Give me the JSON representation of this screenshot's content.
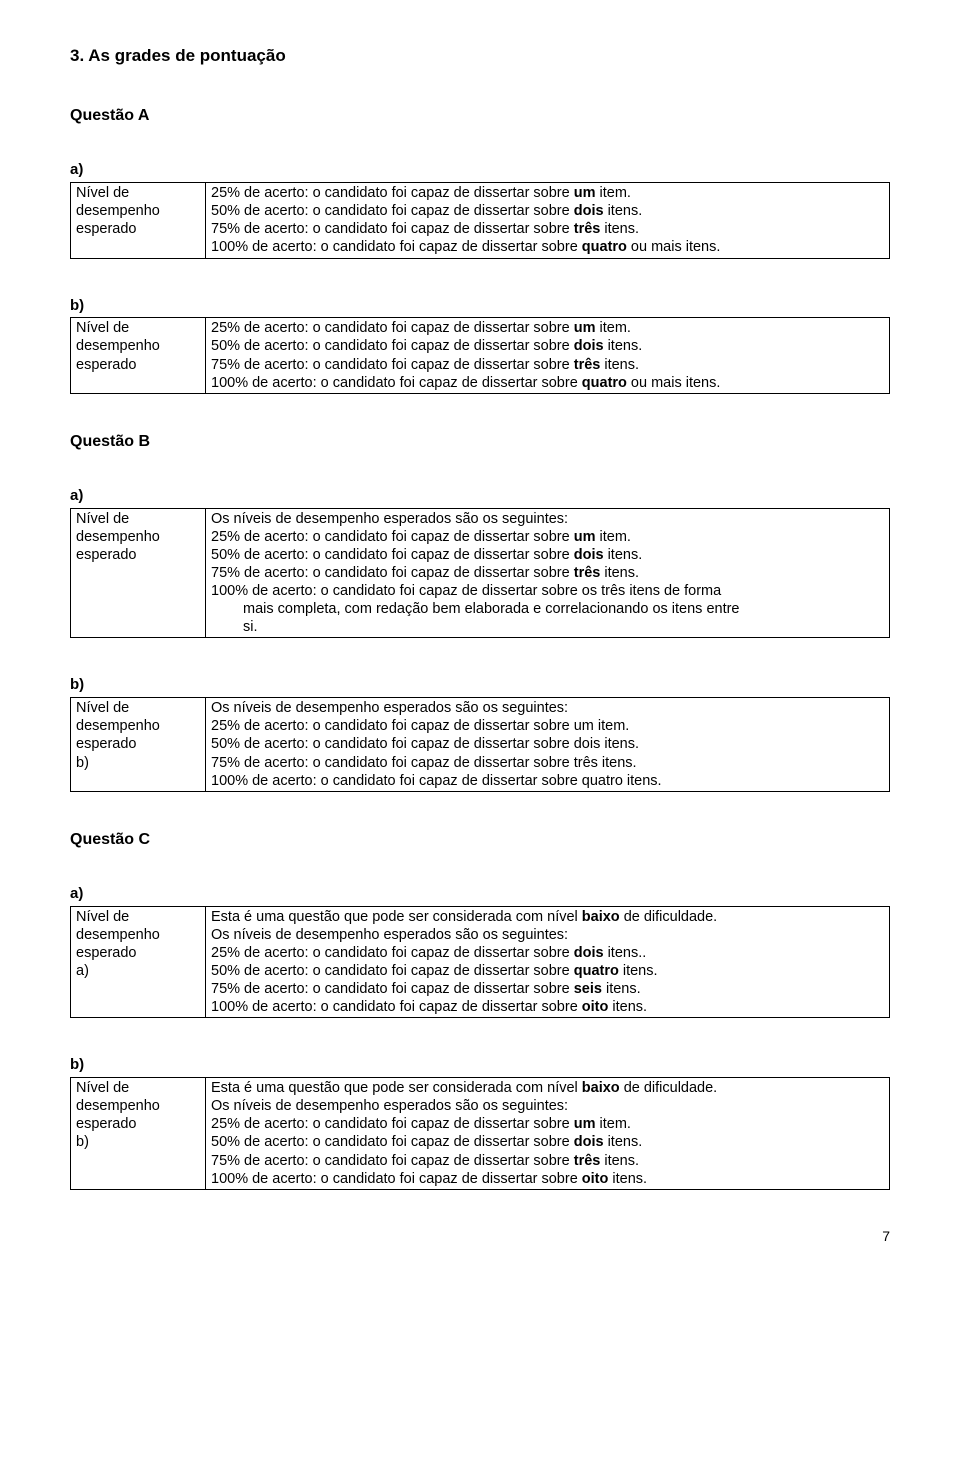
{
  "section_title": "3. As grades de pontuação",
  "page_number": "7",
  "leftcol_label": "Nível de desempenho esperado",
  "questions": [
    {
      "heading": "Questão A",
      "parts": [
        {
          "label": "a)",
          "extra_left": null,
          "lines": [
            [
              {
                "t": "25% de acerto: o candidato foi capaz de dissertar sobre "
              },
              {
                "t": "um",
                "b": true
              },
              {
                "t": " item."
              }
            ],
            [
              {
                "t": "50% de acerto: o candidato foi capaz de dissertar sobre "
              },
              {
                "t": "dois",
                "b": true
              },
              {
                "t": " itens."
              }
            ],
            [
              {
                "t": "75% de acerto: o candidato foi capaz de dissertar sobre "
              },
              {
                "t": "três",
                "b": true
              },
              {
                "t": " itens."
              }
            ],
            [
              {
                "t": "100% de acerto: o candidato foi capaz de dissertar sobre "
              },
              {
                "t": "quatro",
                "b": true
              },
              {
                "t": " ou mais itens."
              }
            ]
          ]
        },
        {
          "label": "b)",
          "extra_left": null,
          "lines": [
            [
              {
                "t": "25% de acerto: o candidato foi capaz de dissertar sobre "
              },
              {
                "t": "um",
                "b": true
              },
              {
                "t": " item."
              }
            ],
            [
              {
                "t": "50% de acerto: o candidato foi capaz de dissertar sobre "
              },
              {
                "t": "dois",
                "b": true
              },
              {
                "t": " itens."
              }
            ],
            [
              {
                "t": "75% de acerto: o candidato foi capaz de dissertar sobre "
              },
              {
                "t": "três",
                "b": true
              },
              {
                "t": " itens."
              }
            ],
            [
              {
                "t": "100% de acerto: o candidato foi capaz de dissertar sobre "
              },
              {
                "t": "quatro",
                "b": true
              },
              {
                "t": " ou mais itens."
              }
            ]
          ]
        }
      ]
    },
    {
      "heading": "Questão B",
      "parts": [
        {
          "label": "a)",
          "extra_left": null,
          "lines": [
            [
              {
                "t": "Os níveis de desempenho esperados são os seguintes:"
              }
            ],
            [
              {
                "t": "25% de acerto: o candidato foi capaz de dissertar sobre "
              },
              {
                "t": "um",
                "b": true
              },
              {
                "t": " item."
              }
            ],
            [
              {
                "t": "50% de acerto: o candidato foi capaz de dissertar sobre "
              },
              {
                "t": "dois",
                "b": true
              },
              {
                "t": " itens."
              }
            ],
            [
              {
                "t": "75% de acerto: o candidato foi capaz de dissertar sobre "
              },
              {
                "t": "três",
                "b": true
              },
              {
                "t": " itens."
              }
            ],
            [
              {
                "t": "100% de acerto: o candidato foi capaz de dissertar sobre os três itens de forma"
              }
            ],
            [
              {
                "t": "mais completa, com redação bem elaborada e correlacionando os itens entre",
                "indent": true
              }
            ],
            [
              {
                "t": "si.",
                "indent": true
              }
            ]
          ]
        },
        {
          "label": "b)",
          "extra_left": "b)",
          "lines": [
            [
              {
                "t": "Os níveis de desempenho esperados são os seguintes:"
              }
            ],
            [
              {
                "t": "25% de acerto: o candidato foi capaz de dissertar sobre um item."
              }
            ],
            [
              {
                "t": "50% de acerto: o candidato foi capaz de dissertar sobre dois itens."
              }
            ],
            [
              {
                "t": "75% de acerto: o candidato foi capaz de dissertar sobre três itens."
              }
            ],
            [
              {
                "t": "100% de acerto: o candidato foi capaz de dissertar sobre quatro itens."
              }
            ]
          ]
        }
      ]
    },
    {
      "heading": "Questão C",
      "parts": [
        {
          "label": "a)",
          "extra_left": "a)",
          "lines": [
            [
              {
                "t": "Esta é uma questão que pode ser considerada com nível "
              },
              {
                "t": "baixo",
                "b": true
              },
              {
                "t": " de dificuldade."
              }
            ],
            [
              {
                "t": "Os níveis de desempenho esperados são os seguintes:"
              }
            ],
            [
              {
                "t": "25% de acerto: o candidato foi capaz de dissertar sobre "
              },
              {
                "t": "dois",
                "b": true
              },
              {
                "t": " itens.."
              }
            ],
            [
              {
                "t": "50% de acerto: o candidato foi capaz de dissertar sobre "
              },
              {
                "t": "quatro",
                "b": true
              },
              {
                "t": " itens."
              }
            ],
            [
              {
                "t": "75% de acerto: o candidato foi capaz de dissertar sobre "
              },
              {
                "t": "seis",
                "b": true
              },
              {
                "t": " itens."
              }
            ],
            [
              {
                "t": "100% de acerto: o candidato foi capaz de dissertar sobre "
              },
              {
                "t": "oito",
                "b": true
              },
              {
                "t": " itens."
              }
            ]
          ]
        },
        {
          "label": "b)",
          "extra_left": "b)",
          "lines": [
            [
              {
                "t": "Esta é uma questão que pode ser considerada com nível "
              },
              {
                "t": "baixo",
                "b": true
              },
              {
                "t": " de dificuldade."
              }
            ],
            [
              {
                "t": "Os níveis de desempenho esperados são os seguintes:"
              }
            ],
            [
              {
                "t": "25% de acerto: o candidato foi capaz de dissertar sobre "
              },
              {
                "t": "um",
                "b": true
              },
              {
                "t": " item."
              }
            ],
            [
              {
                "t": "50% de acerto: o candidato foi capaz de dissertar sobre "
              },
              {
                "t": "dois",
                "b": true
              },
              {
                "t": " itens."
              }
            ],
            [
              {
                "t": "75% de acerto: o candidato foi capaz de dissertar sobre "
              },
              {
                "t": "três",
                "b": true
              },
              {
                "t": " itens."
              }
            ],
            [
              {
                "t": "100% de acerto: o candidato foi capaz de dissertar sobre "
              },
              {
                "t": "oito",
                "b": true
              },
              {
                "t": " itens."
              }
            ]
          ]
        }
      ]
    }
  ]
}
